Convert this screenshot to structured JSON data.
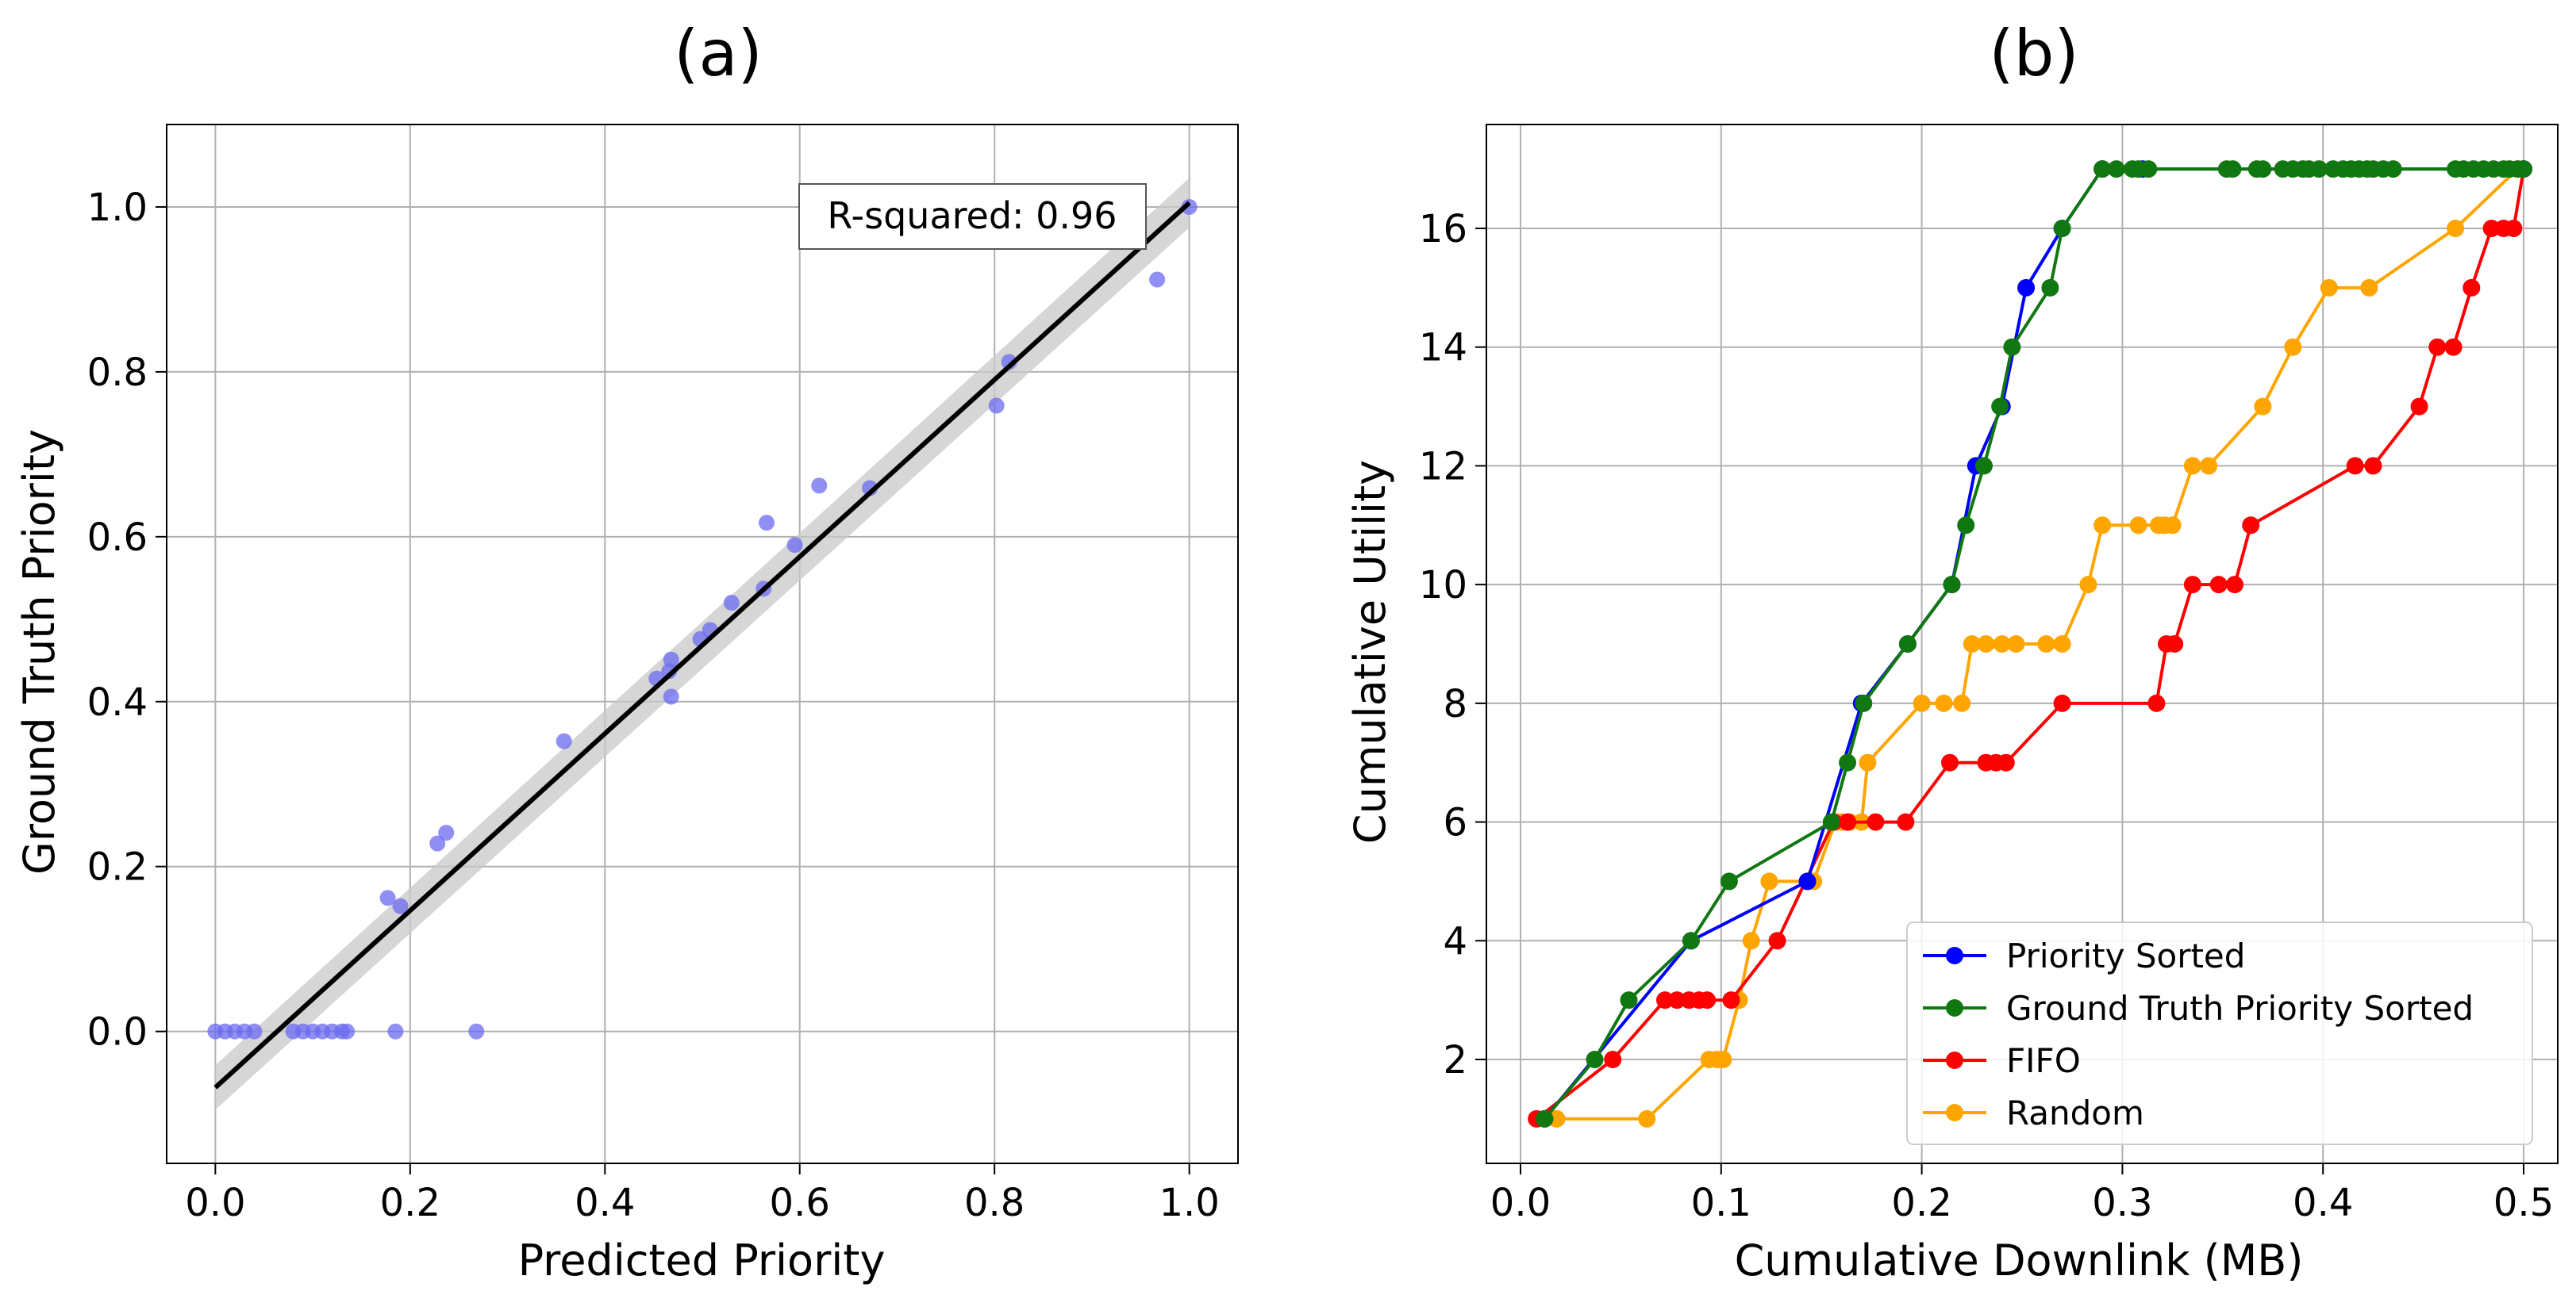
{
  "panel_a": {
    "label": "(a)"
  },
  "panel_b": {
    "label": "(b)"
  },
  "chart_data": [
    {
      "type": "scatter",
      "xlabel": "Predicted Priority",
      "ylabel": "Ground Truth Priority",
      "xlim": [
        -0.05,
        1.05
      ],
      "ylim": [
        -0.16,
        1.1
      ],
      "xticks": [
        0.0,
        0.2,
        0.4,
        0.6,
        0.8,
        1.0
      ],
      "yticks": [
        0.0,
        0.2,
        0.4,
        0.6,
        0.8,
        1.0
      ],
      "xtick_labels": [
        "0.0",
        "0.2",
        "0.4",
        "0.6",
        "0.8",
        "1.0"
      ],
      "ytick_labels": [
        "0.0",
        "0.2",
        "0.4",
        "0.6",
        "0.8",
        "1.0"
      ],
      "grid": true,
      "point_color": "#6b6bf0",
      "points": [
        {
          "x": 0.0,
          "y": 0.0
        },
        {
          "x": 0.01,
          "y": 0.0
        },
        {
          "x": 0.02,
          "y": 0.0
        },
        {
          "x": 0.03,
          "y": 0.0
        },
        {
          "x": 0.04,
          "y": 0.0
        },
        {
          "x": 0.08,
          "y": 0.0
        },
        {
          "x": 0.09,
          "y": 0.0
        },
        {
          "x": 0.1,
          "y": 0.0
        },
        {
          "x": 0.11,
          "y": 0.0
        },
        {
          "x": 0.12,
          "y": 0.0
        },
        {
          "x": 0.13,
          "y": 0.0
        },
        {
          "x": 0.135,
          "y": 0.0
        },
        {
          "x": 0.185,
          "y": 0.0
        },
        {
          "x": 0.268,
          "y": 0.0
        },
        {
          "x": 0.177,
          "y": 0.162
        },
        {
          "x": 0.19,
          "y": 0.152
        },
        {
          "x": 0.228,
          "y": 0.228
        },
        {
          "x": 0.237,
          "y": 0.241
        },
        {
          "x": 0.358,
          "y": 0.352
        },
        {
          "x": 0.453,
          "y": 0.428
        },
        {
          "x": 0.466,
          "y": 0.437
        },
        {
          "x": 0.468,
          "y": 0.451
        },
        {
          "x": 0.468,
          "y": 0.406
        },
        {
          "x": 0.498,
          "y": 0.476
        },
        {
          "x": 0.508,
          "y": 0.487
        },
        {
          "x": 0.53,
          "y": 0.52
        },
        {
          "x": 0.563,
          "y": 0.537
        },
        {
          "x": 0.566,
          "y": 0.617
        },
        {
          "x": 0.595,
          "y": 0.59
        },
        {
          "x": 0.62,
          "y": 0.662
        },
        {
          "x": 0.672,
          "y": 0.659
        },
        {
          "x": 0.802,
          "y": 0.759
        },
        {
          "x": 0.815,
          "y": 0.812
        },
        {
          "x": 0.967,
          "y": 0.912
        },
        {
          "x": 1.0,
          "y": 1.0
        }
      ],
      "fit_line": {
        "x": [
          0.0,
          1.0
        ],
        "y": [
          -0.068,
          1.005
        ]
      },
      "confidence_band": {
        "x": [
          0.0,
          1.0
        ],
        "lower": [
          -0.095,
          0.975
        ],
        "upper": [
          -0.041,
          1.035
        ]
      },
      "annotation": "R-squared: 0.96"
    },
    {
      "type": "line",
      "xlabel": "Cumulative Downlink (MB)",
      "ylabel": "Cumulative Utility",
      "xlim": [
        -0.017,
        0.517
      ],
      "ylim": [
        0.25,
        17.75
      ],
      "xticks": [
        0.0,
        0.1,
        0.2,
        0.3,
        0.4,
        0.5
      ],
      "yticks": [
        2,
        4,
        6,
        8,
        10,
        12,
        14,
        16
      ],
      "xtick_labels": [
        "0.0",
        "0.1",
        "0.2",
        "0.3",
        "0.4",
        "0.5"
      ],
      "ytick_labels": [
        "2",
        "4",
        "6",
        "8",
        "10",
        "12",
        "14",
        "16"
      ],
      "grid": true,
      "legend_position": "bottom-right",
      "series": [
        {
          "name": "Priority Sorted",
          "color": "#0000ff",
          "x": [
            0.012,
            0.085,
            0.143,
            0.17,
            0.193,
            0.215,
            0.227,
            0.24,
            0.252,
            0.27,
            0.29,
            0.31,
            0.5
          ],
          "y": [
            1,
            4,
            5,
            8,
            9,
            10,
            12,
            13,
            15,
            16,
            17,
            17,
            17
          ]
        },
        {
          "name": "Ground Truth Priority Sorted",
          "color": "#117711",
          "x": [
            0.012,
            0.037,
            0.054,
            0.085,
            0.104,
            0.155,
            0.163,
            0.171,
            0.193,
            0.215,
            0.222,
            0.231,
            0.239,
            0.245,
            0.264,
            0.27,
            0.29,
            0.297,
            0.305,
            0.308,
            0.313,
            0.352,
            0.355,
            0.367,
            0.37,
            0.38,
            0.385,
            0.39,
            0.393,
            0.398,
            0.405,
            0.41,
            0.414,
            0.418,
            0.422,
            0.425,
            0.43,
            0.435,
            0.466,
            0.47,
            0.475,
            0.48,
            0.485,
            0.49,
            0.493,
            0.497,
            0.5
          ],
          "y": [
            1,
            2,
            3,
            4,
            5,
            6,
            7,
            8,
            9,
            10,
            11,
            12,
            13,
            14,
            15,
            16,
            17,
            17,
            17,
            17,
            17,
            17,
            17,
            17,
            17,
            17,
            17,
            17,
            17,
            17,
            17,
            17,
            17,
            17,
            17,
            17,
            17,
            17,
            17,
            17,
            17,
            17,
            17,
            17,
            17,
            17,
            17
          ]
        },
        {
          "name": "FIFO",
          "color": "#ff0000",
          "x": [
            0.008,
            0.046,
            0.072,
            0.078,
            0.084,
            0.089,
            0.093,
            0.105,
            0.128,
            0.156,
            0.163,
            0.177,
            0.192,
            0.214,
            0.232,
            0.237,
            0.242,
            0.27,
            0.317,
            0.322,
            0.326,
            0.335,
            0.348,
            0.356,
            0.364,
            0.416,
            0.425,
            0.448,
            0.457,
            0.465,
            0.474,
            0.484,
            0.49,
            0.495,
            0.5
          ],
          "y": [
            1,
            2,
            3,
            3,
            3,
            3,
            3,
            3,
            4,
            6,
            6,
            6,
            6,
            7,
            7,
            7,
            7,
            8,
            8,
            9,
            9,
            10,
            10,
            10,
            11,
            12,
            12,
            13,
            14,
            14,
            15,
            16,
            16,
            16,
            17
          ]
        },
        {
          "name": "Random",
          "color": "#ffa500",
          "x": [
            0.018,
            0.063,
            0.094,
            0.098,
            0.101,
            0.109,
            0.115,
            0.124,
            0.146,
            0.157,
            0.16,
            0.164,
            0.17,
            0.173,
            0.2,
            0.211,
            0.22,
            0.225,
            0.232,
            0.24,
            0.247,
            0.262,
            0.27,
            0.283,
            0.29,
            0.308,
            0.318,
            0.321,
            0.325,
            0.335,
            0.343,
            0.37,
            0.385,
            0.403,
            0.423,
            0.466,
            0.497
          ],
          "y": [
            1,
            1,
            2,
            2,
            2,
            3,
            4,
            5,
            5,
            6,
            6,
            6,
            6,
            7,
            8,
            8,
            8,
            9,
            9,
            9,
            9,
            9,
            9,
            10,
            11,
            11,
            11,
            11,
            11,
            12,
            12,
            13,
            14,
            15,
            15,
            16,
            17
          ]
        }
      ]
    }
  ]
}
